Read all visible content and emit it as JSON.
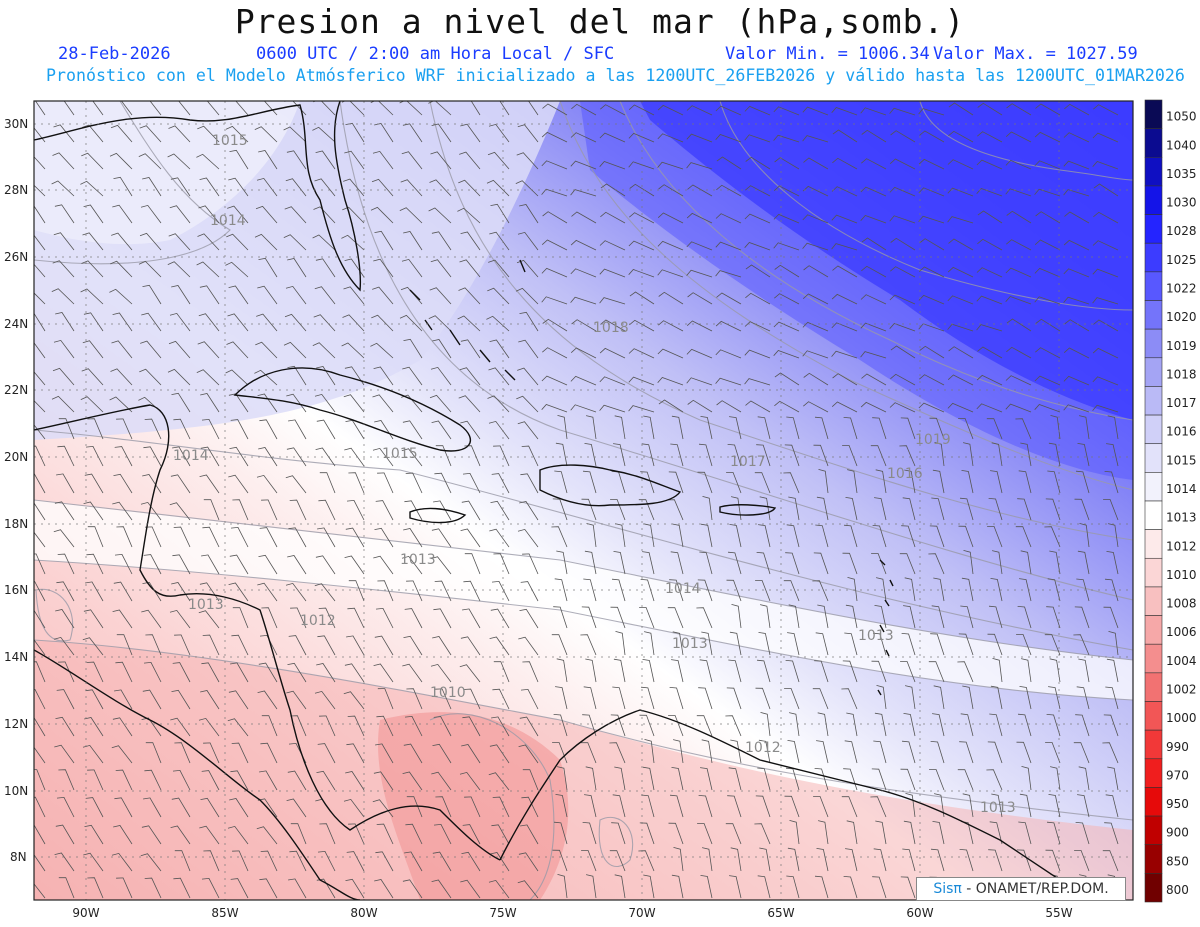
{
  "title": "Presion a nivel del mar (hPa,somb.)",
  "date": "28-Feb-2026",
  "time_line": "0600 UTC / 2:00 am Hora Local / SFC",
  "min_label": "Valor Min. = 1006.34",
  "max_label": "Valor Max. = 1027.59",
  "forecast_line": "Pronóstico con el Modelo Atmósferico WRF inicializado a las 1200UTC_26FEB2026 y válido hasta las  1200UTC_01MAR2026",
  "credit_brand": "Sisπ",
  "credit_text": " - ONAMET/REP.DOM.",
  "lat_labels": [
    "30N",
    "28N",
    "26N",
    "24N",
    "22N",
    "20N",
    "18N",
    "16N",
    "14N",
    "12N",
    "10N",
    "8N"
  ],
  "lon_labels": [
    "90W",
    "85W",
    "80W",
    "75W",
    "70W",
    "65W",
    "60W",
    "55W"
  ],
  "contour_labels": [
    "1015",
    "1014",
    "1018",
    "1014",
    "1015",
    "1017",
    "1019",
    "1016",
    "1013",
    "1013",
    "1012",
    "1014",
    "1013",
    "1013",
    "1010",
    "1012",
    "1013"
  ],
  "legend": [
    {
      "value": "1050",
      "color": "#0a0a55"
    },
    {
      "value": "1040",
      "color": "#0b0b90"
    },
    {
      "value": "1035",
      "color": "#0f0fc2"
    },
    {
      "value": "1030",
      "color": "#1414e8"
    },
    {
      "value": "1028",
      "color": "#2424ff"
    },
    {
      "value": "1025",
      "color": "#3c3cff"
    },
    {
      "value": "1022",
      "color": "#5858ff"
    },
    {
      "value": "1020",
      "color": "#7474fa"
    },
    {
      "value": "1019",
      "color": "#8c8cf6"
    },
    {
      "value": "1018",
      "color": "#a4a4f4"
    },
    {
      "value": "1017",
      "color": "#babaf6"
    },
    {
      "value": "1016",
      "color": "#d0d0f8"
    },
    {
      "value": "1015",
      "color": "#e2e2fa"
    },
    {
      "value": "1014",
      "color": "#f2f2fc"
    },
    {
      "value": "1013",
      "color": "#ffffff"
    },
    {
      "value": "1012",
      "color": "#fdeaea"
    },
    {
      "value": "1010",
      "color": "#fbd6d6"
    },
    {
      "value": "1008",
      "color": "#f8c0c0"
    },
    {
      "value": "1006",
      "color": "#f6a8a8"
    },
    {
      "value": "1004",
      "color": "#f48e8e"
    },
    {
      "value": "1002",
      "color": "#f27272"
    },
    {
      "value": "1000",
      "color": "#f25656"
    },
    {
      "value": "990",
      "color": "#f23838"
    },
    {
      "value": "970",
      "color": "#f01e1e"
    },
    {
      "value": "950",
      "color": "#e60a0a"
    },
    {
      "value": "900",
      "color": "#c00000"
    },
    {
      "value": "850",
      "color": "#980000"
    },
    {
      "value": "800",
      "color": "#700000"
    }
  ]
}
